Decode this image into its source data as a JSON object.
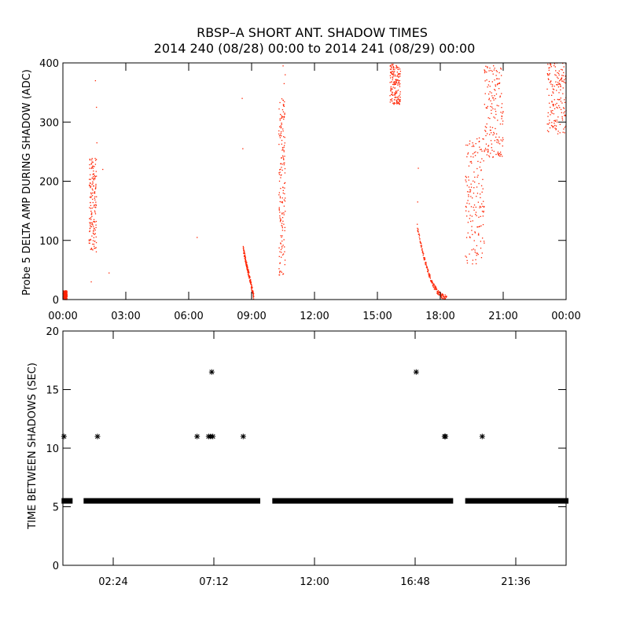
{
  "figure": {
    "title_line1": "RBSP–A SHORT ANT. SHADOW TIMES",
    "title_line2": "2014 240 (08/28) 00:00 to 2014 241 (08/29) 00:00"
  },
  "colors": {
    "points_top": "#ff2200",
    "points_bottom": "#000000",
    "axes": "#000000"
  },
  "chart_data": [
    {
      "type": "scatter",
      "ylabel": "Probe 5 DELTA AMP DURING SHADOW (ADC)",
      "xlabel": "",
      "x_units": "hours since 2014-08-28 00:00",
      "xlim": [
        0,
        24
      ],
      "ylim": [
        0,
        400
      ],
      "x_ticks": [
        0,
        3,
        6,
        9,
        12,
        15,
        18,
        21,
        24
      ],
      "x_tick_labels": [
        "00:00",
        "03:00",
        "06:00",
        "09:00",
        "12:00",
        "15:00",
        "18:00",
        "21:00",
        "00:00"
      ],
      "y_ticks": [
        0,
        100,
        200,
        300,
        400
      ],
      "y_tick_labels": [
        "0",
        "100",
        "200",
        "300",
        "400"
      ],
      "clusters": [
        {
          "x_range": [
            0.0,
            0.2
          ],
          "y_range": [
            0,
            15
          ]
        },
        {
          "x_range": [
            1.25,
            1.6
          ],
          "y_range": [
            80,
            240
          ]
        },
        {
          "x_range": [
            8.6,
            9.1
          ],
          "y_range": [
            0,
            80
          ]
        },
        {
          "x_range": [
            10.3,
            10.6
          ],
          "y_range": [
            40,
            340
          ]
        },
        {
          "x_range": [
            15.6,
            16.1
          ],
          "y_range": [
            330,
            400
          ]
        },
        {
          "x_range": [
            16.9,
            18.3
          ],
          "y_range": [
            0,
            120
          ]
        },
        {
          "x_range": [
            19.2,
            20.1
          ],
          "y_range": [
            60,
            280
          ]
        },
        {
          "x_range": [
            20.1,
            21.0
          ],
          "y_range": [
            240,
            400
          ]
        },
        {
          "x_range": [
            23.1,
            24.0
          ],
          "y_range": [
            280,
            400
          ]
        }
      ],
      "points": [
        [
          1.55,
          370
        ],
        [
          1.6,
          325
        ],
        [
          1.62,
          265
        ],
        [
          1.9,
          220
        ],
        [
          2.2,
          45
        ],
        [
          6.4,
          105
        ],
        [
          8.55,
          340
        ],
        [
          8.58,
          255
        ],
        [
          10.5,
          395
        ],
        [
          10.6,
          380
        ],
        [
          10.55,
          365
        ],
        [
          16.95,
          222
        ],
        [
          16.92,
          165
        ],
        [
          1.35,
          30
        ]
      ]
    },
    {
      "type": "scatter",
      "ylabel": "TIME BETWEEN SHADOWS (SEC)",
      "xlabel": "",
      "x_units": "hours since 2014-08-28 00:00",
      "xlim": [
        0,
        24
      ],
      "ylim": [
        0,
        20
      ],
      "x_ticks": [
        2.4,
        7.2,
        12.0,
        16.8,
        21.6
      ],
      "x_tick_labels": [
        "02:24",
        "07:12",
        "12:00",
        "16:48",
        "21:36"
      ],
      "y_ticks": [
        0,
        5,
        10,
        15,
        20
      ],
      "y_tick_labels": [
        "0",
        "5",
        "10",
        "15",
        "20"
      ],
      "baseline_value": 5.5,
      "baseline_segments": [
        [
          0.05,
          0.35
        ],
        [
          1.1,
          9.3
        ],
        [
          10.1,
          18.5
        ],
        [
          19.3,
          24.0
        ]
      ],
      "points": [
        [
          0.05,
          11
        ],
        [
          1.65,
          11
        ],
        [
          6.4,
          11
        ],
        [
          6.95,
          11
        ],
        [
          7.05,
          11
        ],
        [
          7.15,
          11
        ],
        [
          8.6,
          11
        ],
        [
          7.1,
          16.5
        ],
        [
          16.85,
          16.5
        ],
        [
          18.2,
          11
        ],
        [
          18.25,
          11
        ],
        [
          20.0,
          11
        ]
      ]
    }
  ]
}
